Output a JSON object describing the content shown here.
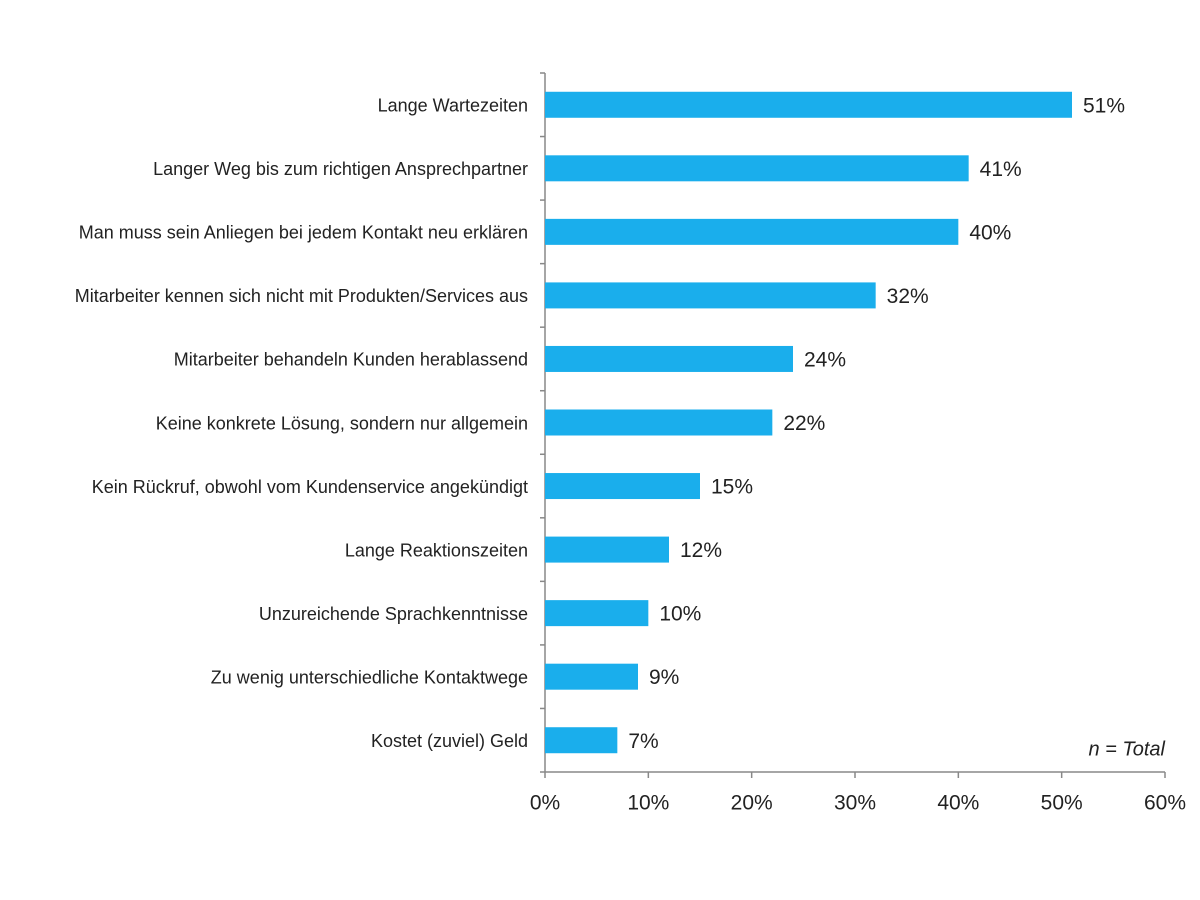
{
  "chart_data": {
    "type": "hbar",
    "categories": [
      "Lange Wartezeiten",
      "Langer Weg bis zum richtigen Ansprechpartner",
      "Man muss sein Anliegen bei jedem Kontakt neu erklären",
      "Mitarbeiter kennen sich nicht mit Produkten/Services aus",
      "Mitarbeiter behandeln Kunden herablassend",
      "Keine konkrete Lösung, sondern nur allgemein",
      "Kein Rückruf, obwohl vom Kundenservice angekündigt",
      "Lange Reaktionszeiten",
      "Unzureichende Sprachkenntnisse",
      "Zu wenig unterschiedliche Kontaktwege",
      "Kostet (zuviel) Geld"
    ],
    "values": [
      51,
      41,
      40,
      32,
      24,
      22,
      15,
      12,
      10,
      9,
      7
    ],
    "value_labels": [
      "51%",
      "41%",
      "40%",
      "32%",
      "24%",
      "22%",
      "15%",
      "12%",
      "10%",
      "9%",
      "7%"
    ],
    "color": "#1aaeec",
    "xlim": [
      0,
      60
    ],
    "xticks": [
      {
        "value": 0,
        "label": "0%"
      },
      {
        "value": 10,
        "label": "10%"
      },
      {
        "value": 20,
        "label": "20%"
      },
      {
        "value": 30,
        "label": "30%"
      },
      {
        "value": 40,
        "label": "40%"
      },
      {
        "value": 50,
        "label": "50%"
      },
      {
        "value": 60,
        "label": "60%"
      }
    ],
    "annotation": "n = Total"
  }
}
